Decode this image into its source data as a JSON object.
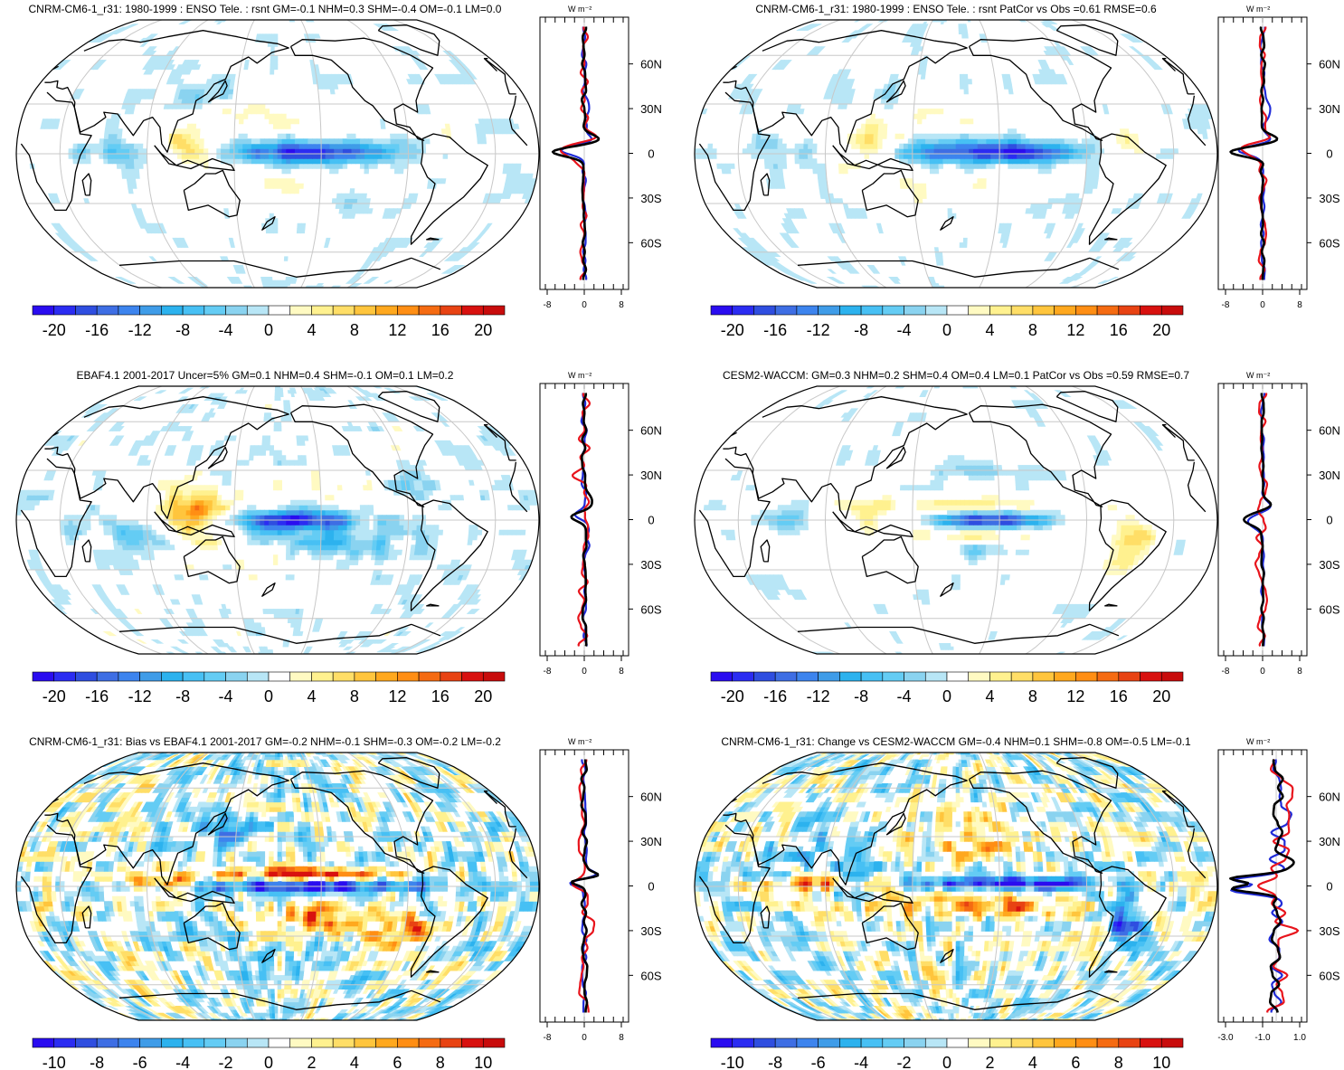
{
  "figure": {
    "colors": {
      "land_outline": "#000000",
      "grid": "#c8c8c8",
      "zonal_model": "#000000",
      "zonal_obs": "#e8141c",
      "zonal_other": "#1f2bd8"
    }
  },
  "chart_data": [
    {
      "type": "heatmap",
      "title": "CNRM-CM6-1_r31: 1980-1999 : ENSO Tele. : rsnt GM=-0.1 NHM=0.3 SHM=-0.4 OM=-0.1 LM=0.0",
      "projection": "Robinson, Pacific-centred",
      "colorbar": {
        "levels": [
          -22,
          -20,
          -18,
          -16,
          -14,
          -12,
          -10,
          -8,
          -6,
          -4,
          -2,
          2,
          4,
          6,
          8,
          10,
          12,
          14,
          16,
          18,
          20,
          22
        ],
        "tick_labels": [
          "-20",
          "-16",
          "-12",
          "-8",
          "-4",
          "0",
          "4",
          "8",
          "12",
          "16",
          "20"
        ]
      },
      "zonal_mean": {
        "xlim": [
          -8,
          8
        ],
        "x_tick_labels": [
          "-8",
          "0",
          "8"
        ],
        "unit_label": "W m⁻²",
        "lat_labels": [
          "60N",
          "30N",
          "0",
          "30S",
          "60S"
        ]
      },
      "features": [
        {
          "label": "equatorial Pacific negative",
          "lon": 200,
          "lat": 2,
          "value": -20
        },
        {
          "label": "maritime continent positive",
          "lon": 115,
          "lat": 5,
          "value": 8
        },
        {
          "label": "north subtropical Pacific positive",
          "lon": 175,
          "lat": 25,
          "value": 4
        },
        {
          "label": "south subtropical Pacific positive",
          "lon": 185,
          "lat": -22,
          "value": 4
        }
      ]
    },
    {
      "type": "heatmap",
      "title": "CNRM-CM6-1_r31: 1980-1999 : ENSO Tele. : rsnt PatCor vs Obs =0.61 RMSE=0.6",
      "projection": "Robinson, Pacific-centred",
      "colorbar": {
        "levels": [
          -22,
          -20,
          -18,
          -16,
          -14,
          -12,
          -10,
          -8,
          -6,
          -4,
          -2,
          2,
          4,
          6,
          8,
          10,
          12,
          14,
          16,
          18,
          20,
          22
        ],
        "tick_labels": [
          "-20",
          "-16",
          "-12",
          "-8",
          "-4",
          "0",
          "4",
          "8",
          "12",
          "16",
          "20"
        ]
      },
      "zonal_mean": {
        "xlim": [
          -8,
          8
        ],
        "x_tick_labels": [
          "-8",
          "0",
          "8"
        ],
        "unit_label": "W m⁻²",
        "lat_labels": [
          "60N",
          "30N",
          "0",
          "30S",
          "60S"
        ]
      },
      "features": [
        {
          "label": "equatorial Pacific negative",
          "lon": 200,
          "lat": 2,
          "value": -20
        },
        {
          "label": "maritime continent positive",
          "lon": 115,
          "lat": 5,
          "value": 8
        }
      ]
    },
    {
      "type": "heatmap",
      "title": "EBAF4.1 2001-2017 Uncer=5% GM=0.1 NHM=0.4 SHM=-0.1 OM=0.1 LM=0.2",
      "projection": "Robinson, Pacific-centred",
      "colorbar": {
        "levels": [
          -22,
          -20,
          -18,
          -16,
          -14,
          -12,
          -10,
          -8,
          -6,
          -4,
          -2,
          2,
          4,
          6,
          8,
          10,
          12,
          14,
          16,
          18,
          20,
          22
        ],
        "tick_labels": [
          "-20",
          "-16",
          "-12",
          "-8",
          "-4",
          "0",
          "4",
          "8",
          "12",
          "16",
          "20"
        ]
      },
      "zonal_mean": {
        "xlim": [
          -8,
          8
        ],
        "x_tick_labels": [
          "-8",
          "0",
          "8"
        ],
        "unit_label": "W m⁻²",
        "lat_labels": [
          "60N",
          "30N",
          "0",
          "30S",
          "60S"
        ]
      },
      "features": [
        {
          "label": "central equatorial Pacific negative",
          "lon": 195,
          "lat": 0,
          "value": -20
        },
        {
          "label": "maritime continent positive",
          "lon": 120,
          "lat": 2,
          "value": 14
        },
        {
          "label": "SPCZ negative",
          "lon": 215,
          "lat": -15,
          "value": -8
        }
      ]
    },
    {
      "type": "heatmap",
      "title": "CESM2-WACCM: GM=0.3 NHM=0.2 SHM=0.4 OM=0.4 LM=0.1 PatCor vs Obs =0.59 RMSE=0.7",
      "projection": "Robinson, Pacific-centred",
      "colorbar": {
        "levels": [
          -22,
          -20,
          -18,
          -16,
          -14,
          -12,
          -10,
          -8,
          -6,
          -4,
          -2,
          2,
          4,
          6,
          8,
          10,
          12,
          14,
          16,
          18,
          20,
          22
        ],
        "tick_labels": [
          "-20",
          "-16",
          "-12",
          "-8",
          "-4",
          "0",
          "4",
          "8",
          "12",
          "16",
          "20"
        ]
      },
      "zonal_mean": {
        "xlim": [
          -8,
          8
        ],
        "x_tick_labels": [
          "-8",
          "0",
          "8"
        ],
        "unit_label": "W m⁻²",
        "lat_labels": [
          "60N",
          "30N",
          "0",
          "30S",
          "60S"
        ]
      },
      "features": [
        {
          "label": "equatorial Pacific negative",
          "lon": 205,
          "lat": 0,
          "value": -20
        },
        {
          "label": "South America positive",
          "lon": 300,
          "lat": -15,
          "value": 8
        }
      ]
    },
    {
      "type": "heatmap",
      "title": "CNRM-CM6-1_r31: Bias vs EBAF4.1 2001-2017 GM=-0.2 NHM=-0.1 SHM=-0.3 OM=-0.2 LM=-0.2",
      "projection": "Robinson, Pacific-centred",
      "colorbar": {
        "levels": [
          -11,
          -10,
          -9,
          -8,
          -7,
          -6,
          -5,
          -4,
          -3,
          -2,
          -1,
          1,
          2,
          3,
          4,
          5,
          6,
          7,
          8,
          9,
          10,
          11
        ],
        "tick_labels": [
          "-10",
          "-8",
          "-6",
          "-4",
          "-2",
          "0",
          "2",
          "4",
          "6",
          "8",
          "10"
        ]
      },
      "zonal_mean": {
        "xlim": [
          -8,
          8
        ],
        "x_tick_labels": [
          "-8",
          "0",
          "8"
        ],
        "unit_label": "W m⁻²",
        "lat_labels": [
          "60N",
          "30N",
          "0",
          "30S",
          "60S"
        ]
      },
      "features": [
        {
          "label": "equatorial Pacific negative",
          "lon": 200,
          "lat": 0,
          "value": -10
        },
        {
          "label": "north equatorial band positive",
          "lon": 205,
          "lat": 8,
          "value": 8
        },
        {
          "label": "south equatorial Pacific positive",
          "lon": 215,
          "lat": -18,
          "value": 8
        }
      ]
    },
    {
      "type": "heatmap",
      "title": "CNRM-CM6-1_r31: Change vs CESM2-WACCM GM=-0.4 NHM=0.1 SHM=-0.8 OM=-0.5 LM=-0.1",
      "projection": "Robinson, Pacific-centred",
      "colorbar": {
        "levels": [
          -11,
          -10,
          -9,
          -8,
          -7,
          -6,
          -5,
          -4,
          -3,
          -2,
          -1,
          1,
          2,
          3,
          4,
          5,
          6,
          7,
          8,
          9,
          10,
          11
        ],
        "tick_labels": [
          "-10",
          "-8",
          "-6",
          "-4",
          "-2",
          "0",
          "2",
          "4",
          "6",
          "8",
          "10"
        ]
      },
      "zonal_mean": {
        "xlim": [
          -4,
          2
        ],
        "x_tick_labels": [
          "-3.0",
          "-1.0",
          "1.0"
        ],
        "unit_label": "W m⁻²",
        "lat_labels": [
          "60N",
          "30N",
          "0",
          "30S",
          "60S"
        ]
      },
      "features": [
        {
          "label": "equatorial Pacific negative",
          "lon": 215,
          "lat": 2,
          "value": -10
        },
        {
          "label": "north subtropical Pacific positive",
          "lon": 180,
          "lat": 28,
          "value": 4
        },
        {
          "label": "south tropical Pacific positive",
          "lon": 210,
          "lat": -15,
          "value": 6
        }
      ]
    }
  ]
}
